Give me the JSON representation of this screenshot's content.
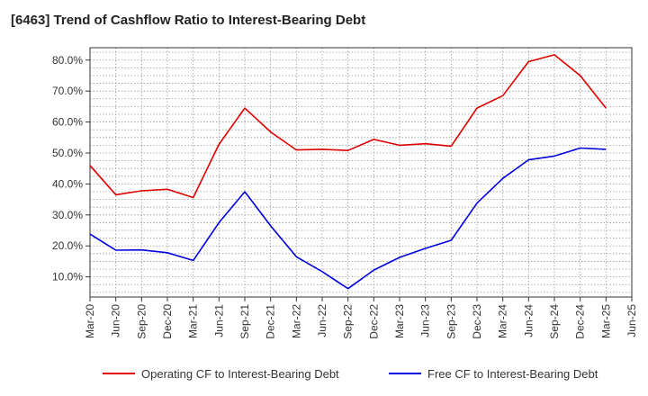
{
  "chart_data": {
    "type": "line",
    "title": "[6463]  Trend of Cashflow Ratio to Interest-Bearing Debt",
    "xlabel": "",
    "ylabel": "",
    "x_ticks": [
      "Mar-20",
      "Jun-20",
      "Sep-20",
      "Dec-20",
      "Mar-21",
      "Jun-21",
      "Sep-21",
      "Dec-21",
      "Mar-22",
      "Jun-22",
      "Sep-22",
      "Dec-22",
      "Mar-23",
      "Jun-23",
      "Sep-23",
      "Dec-23",
      "Mar-24",
      "Jun-24",
      "Sep-24",
      "Dec-24",
      "Mar-25",
      "Jun-25"
    ],
    "y_ticks": [
      "10.0%",
      "20.0%",
      "30.0%",
      "40.0%",
      "50.0%",
      "60.0%",
      "70.0%",
      "80.0%"
    ],
    "y_tick_values": [
      10,
      20,
      30,
      40,
      50,
      60,
      70,
      80
    ],
    "ylim": [
      3.5,
      84
    ],
    "y_unit": "%",
    "grid": true,
    "legend_position": "bottom",
    "x": [
      "Mar-20",
      "Jun-20",
      "Sep-20",
      "Dec-20",
      "Mar-21",
      "Jun-21",
      "Sep-21",
      "Dec-21",
      "Mar-22",
      "Jun-22",
      "Sep-22",
      "Dec-22",
      "Mar-23",
      "Jun-23",
      "Sep-23",
      "Dec-23",
      "Mar-24",
      "Jun-24",
      "Sep-24",
      "Dec-24",
      "Mar-25"
    ],
    "series": [
      {
        "name": "Operating CF to Interest-Bearing Debt",
        "color": "#dd0000",
        "values": [
          46.0,
          36.5,
          37.8,
          38.3,
          35.6,
          52.8,
          64.5,
          56.8,
          51.0,
          51.2,
          50.8,
          54.4,
          52.5,
          53.0,
          52.2,
          64.5,
          68.5,
          79.5,
          81.7,
          75.0,
          64.5
        ]
      },
      {
        "name": "Free CF to Interest-Bearing Debt",
        "color": "#0000dd",
        "values": [
          23.8,
          18.6,
          18.7,
          17.8,
          15.3,
          27.5,
          37.5,
          26.5,
          16.5,
          11.7,
          6.2,
          12.2,
          16.3,
          19.2,
          21.8,
          33.8,
          41.8,
          47.8,
          49.0,
          51.6,
          51.2
        ]
      }
    ]
  }
}
